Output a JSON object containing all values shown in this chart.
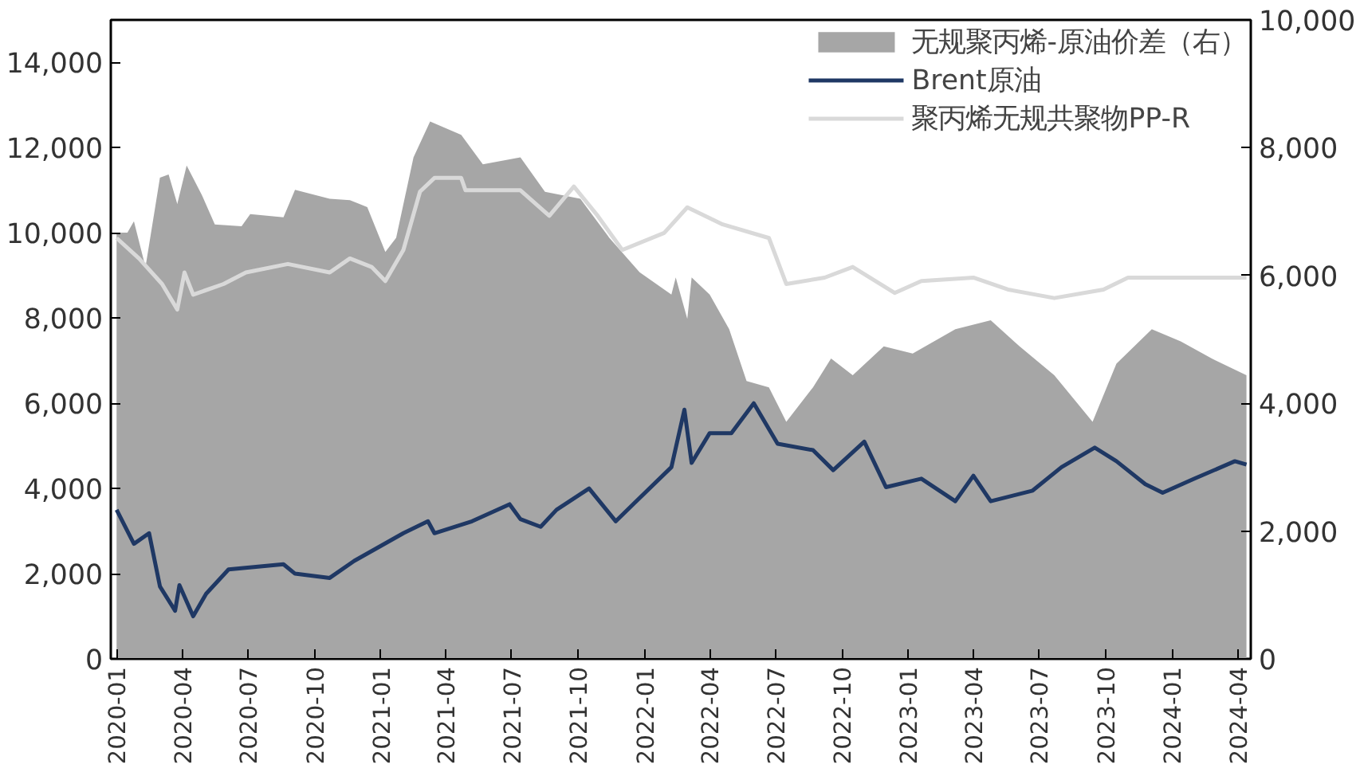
{
  "chart_data": {
    "type": "line",
    "xlim": [
      "2019-12-24",
      "2024-04-19"
    ],
    "xticks": [
      "2020-01",
      "2020-04",
      "2020-07",
      "2020-10",
      "2021-01",
      "2021-04",
      "2021-07",
      "2021-10",
      "2022-01",
      "2022-04",
      "2022-07",
      "2022-10",
      "2023-01",
      "2023-04",
      "2023-07",
      "2023-10",
      "2024-01",
      "2024-04"
    ],
    "ylim": [
      0,
      15000
    ],
    "yticks": [
      0,
      {
        "value": 2000,
        "label": "2,000"
      },
      {
        "value": 4000,
        "label": "4,000"
      },
      {
        "value": 6000,
        "label": "6,000"
      },
      {
        "value": 8000,
        "label": "8,000"
      },
      {
        "value": 10000,
        "label": "10,000"
      },
      {
        "value": 12000,
        "label": "12,000"
      },
      {
        "value": 14000,
        "label": "14,000"
      }
    ],
    "y2lim": [
      0,
      10000
    ],
    "y2ticks": [
      0,
      {
        "value": 2000,
        "label": "2,000"
      },
      {
        "value": 4000,
        "label": "4,000"
      },
      {
        "value": 6000,
        "label": "6,000"
      },
      {
        "value": 8000,
        "label": "8,000"
      },
      {
        "value": 10000,
        "label": "10,000"
      }
    ],
    "grid": false,
    "legend": "top right",
    "series": [
      {
        "name": "无规聚丙烯-原油价差（右）",
        "type": "area",
        "axis": "y2",
        "color": "#a6a6a6",
        "x": [
          "2020-01-01",
          "2020-01-16",
          "2020-01-25",
          "2020-02-10",
          "2020-03-01",
          "2020-03-13",
          "2020-03-25",
          "2020-04-07",
          "2020-04-28",
          "2020-05-16",
          "2020-06-22",
          "2020-07-04",
          "2020-08-19",
          "2020-09-04",
          "2020-10-22",
          "2020-11-19",
          "2020-12-13",
          "2021-01-07",
          "2021-01-22",
          "2021-02-15",
          "2021-03-10",
          "2021-04-22",
          "2021-05-22",
          "2021-07-13",
          "2021-08-16",
          "2021-10-04",
          "2021-11-13",
          "2021-12-25",
          "2022-02-07",
          "2022-02-13",
          "2022-03-01",
          "2022-03-07",
          "2022-04-01",
          "2022-04-28",
          "2022-05-22",
          "2022-06-22",
          "2022-07-16",
          "2022-08-22",
          "2022-09-16",
          "2022-10-16",
          "2022-11-28",
          "2023-01-07",
          "2023-03-07",
          "2023-04-25",
          "2023-06-04",
          "2023-07-22",
          "2023-09-13",
          "2023-10-16",
          "2023-12-04",
          "2024-01-13",
          "2024-02-25",
          "2024-04-13"
        ],
        "values": [
          6670,
          6670,
          6850,
          6130,
          7530,
          7580,
          7120,
          7720,
          7260,
          6800,
          6770,
          6960,
          6910,
          7340,
          7200,
          7180,
          7070,
          6370,
          6590,
          7850,
          8410,
          8200,
          7740,
          7850,
          7310,
          7200,
          6590,
          6050,
          5700,
          5970,
          5320,
          5970,
          5700,
          5160,
          4350,
          4250,
          3710,
          4250,
          4700,
          4440,
          4890,
          4780,
          5160,
          5300,
          4890,
          4440,
          3710,
          4620,
          5160,
          4970,
          4700,
          4440
        ]
      },
      {
        "name": "Brent原油",
        "color": "#1f3864",
        "x": [
          "2020-01-01",
          "2020-01-25",
          "2020-02-15",
          "2020-03-01",
          "2020-03-22",
          "2020-03-28",
          "2020-04-16",
          "2020-05-04",
          "2020-06-04",
          "2020-08-19",
          "2020-09-04",
          "2020-10-22",
          "2020-11-25",
          "2021-02-01",
          "2021-03-07",
          "2021-03-16",
          "2021-05-07",
          "2021-06-28",
          "2021-07-13",
          "2021-08-10",
          "2021-09-01",
          "2021-10-16",
          "2021-11-22",
          "2021-12-16",
          "2022-02-07",
          "2022-02-25",
          "2022-03-07",
          "2022-04-01",
          "2022-05-01",
          "2022-06-01",
          "2022-07-04",
          "2022-08-22",
          "2022-09-19",
          "2022-11-01",
          "2022-12-01",
          "2023-01-19",
          "2023-03-07",
          "2023-04-01",
          "2023-04-25",
          "2023-06-22",
          "2023-08-01",
          "2023-09-16",
          "2023-10-16",
          "2023-11-25",
          "2023-12-19",
          "2024-02-01",
          "2024-03-28",
          "2024-04-13"
        ],
        "values": [
          3500,
          2700,
          2950,
          1700,
          1130,
          1730,
          1000,
          1530,
          2100,
          2220,
          2000,
          1900,
          2300,
          2950,
          3230,
          2950,
          3230,
          3630,
          3280,
          3100,
          3500,
          4000,
          3230,
          3630,
          4500,
          5850,
          4600,
          5300,
          5300,
          6000,
          5050,
          4900,
          4430,
          5100,
          4030,
          4230,
          3700,
          4300,
          3700,
          3950,
          4500,
          4960,
          4640,
          4100,
          3900,
          4230,
          4640,
          4560
        ]
      },
      {
        "name": "聚丙烯无规共聚物PP-R",
        "color": "#d9d9d9",
        "x": [
          "2020-01-01",
          "2020-02-01",
          "2020-03-04",
          "2020-03-25",
          "2020-04-04",
          "2020-04-16",
          "2020-05-28",
          "2020-06-28",
          "2020-08-25",
          "2020-10-22",
          "2020-11-19",
          "2020-12-19",
          "2021-01-07",
          "2021-02-01",
          "2021-02-24",
          "2021-03-16",
          "2021-04-22",
          "2021-04-28",
          "2021-07-13",
          "2021-08-22",
          "2021-09-25",
          "2021-10-28",
          "2021-12-01",
          "2022-01-28",
          "2022-03-01",
          "2022-04-19",
          "2022-06-22",
          "2022-07-16",
          "2022-09-07",
          "2022-10-16",
          "2022-12-13",
          "2023-01-19",
          "2023-04-01",
          "2023-05-19",
          "2023-07-22",
          "2023-09-28",
          "2023-11-01",
          "2024-04-13"
        ],
        "values": [
          9880,
          9400,
          8800,
          8200,
          9070,
          8550,
          8800,
          9070,
          9270,
          9070,
          9400,
          9200,
          8870,
          9600,
          10970,
          11290,
          11290,
          11000,
          11000,
          10400,
          11090,
          10400,
          9600,
          10000,
          10600,
          10200,
          9880,
          8800,
          8950,
          9200,
          8590,
          8870,
          8950,
          8670,
          8470,
          8670,
          8950,
          8950
        ]
      }
    ]
  }
}
